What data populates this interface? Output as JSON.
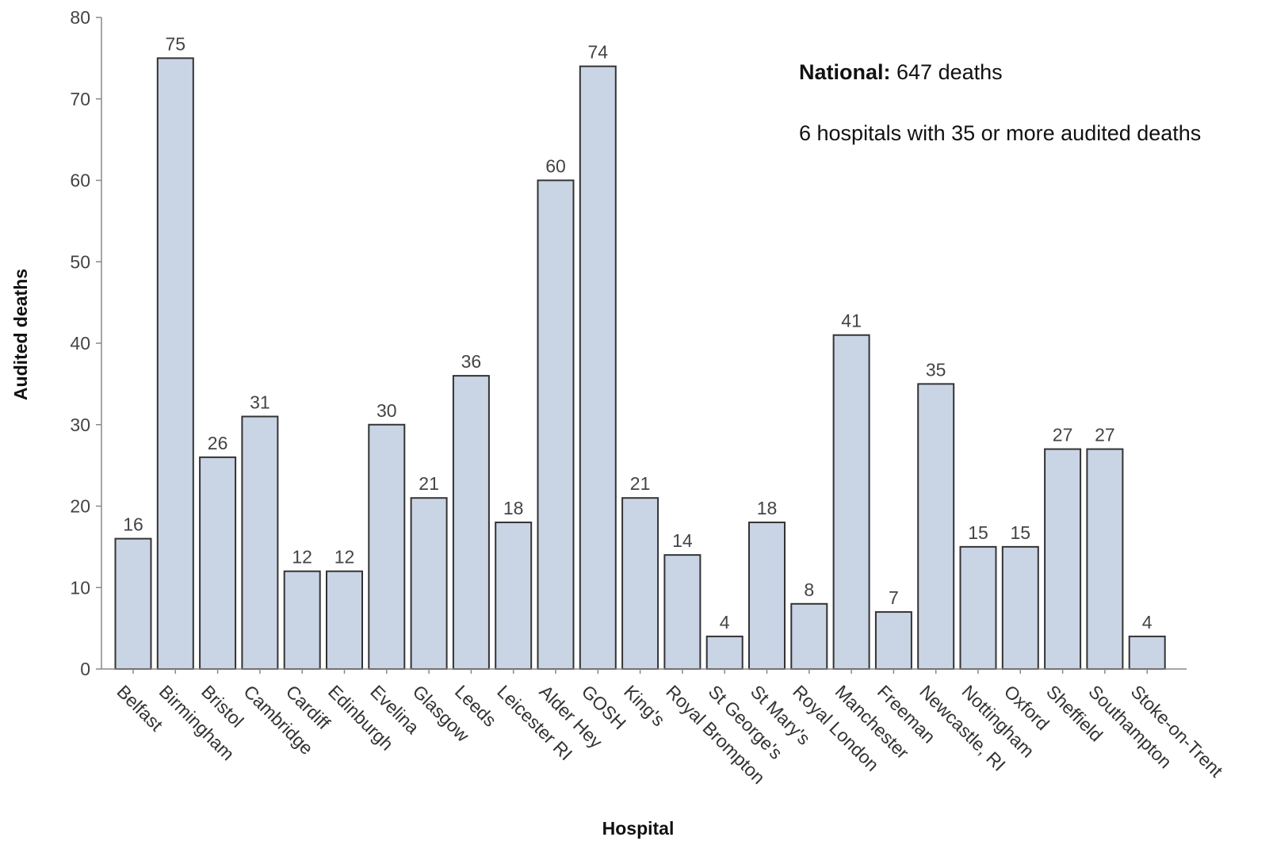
{
  "chart_data": {
    "type": "bar",
    "title": "",
    "xlabel": "Hospital",
    "ylabel": "Audited deaths",
    "ylim": [
      0,
      80
    ],
    "yticks": [
      0,
      10,
      20,
      30,
      40,
      50,
      60,
      70,
      80
    ],
    "grid": false,
    "legend": "none",
    "bar_color": "#c9d4e5",
    "bar_stroke": "#333333",
    "categories": [
      "Belfast",
      "Birmingham",
      "Bristol",
      "Cambridge",
      "Cardiff",
      "Edinburgh",
      "Evelina",
      "Glasgow",
      "Leeds",
      "Leicester RI",
      "Alder Hey",
      "GOSH",
      "King's",
      "Royal Brompton",
      "St George's",
      "St Mary's",
      "Royal London",
      "Manchester",
      "Freeman",
      "Newcastle, RI",
      "Nottingham",
      "Oxford",
      "Sheffield",
      "Southampton",
      "Stoke-on-Trent"
    ],
    "values": [
      16,
      75,
      26,
      31,
      12,
      12,
      30,
      21,
      36,
      18,
      60,
      74,
      21,
      14,
      4,
      18,
      8,
      41,
      7,
      35,
      15,
      15,
      27,
      27,
      4
    ],
    "annotations": {
      "national_label": "National:",
      "national_text": " 647 deaths",
      "hospitals_text": "6 hospitals with 35 or more audited deaths"
    }
  }
}
